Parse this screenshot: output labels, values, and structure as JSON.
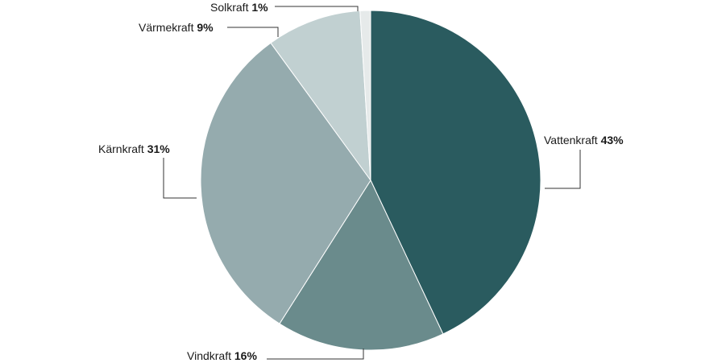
{
  "chart_data": {
    "type": "pie",
    "title": "",
    "slices": [
      {
        "label": "Vattenkraft",
        "percent_label": "43%",
        "value": 43,
        "color": "#2a5b5f"
      },
      {
        "label": "Vindkraft",
        "percent_label": "16%",
        "value": 16,
        "color": "#6a8b8c"
      },
      {
        "label": "Kärnkraft",
        "percent_label": "31%",
        "value": 31,
        "color": "#95abae"
      },
      {
        "label": "Värmekraft",
        "percent_label": "9%",
        "value": 9,
        "color": "#c1d0d1"
      },
      {
        "label": "Solkraft",
        "percent_label": "1%",
        "value": 1,
        "color": "#e6eaea"
      }
    ],
    "start_angle": "12 o'clock",
    "direction": "clockwise",
    "legend": "none"
  }
}
